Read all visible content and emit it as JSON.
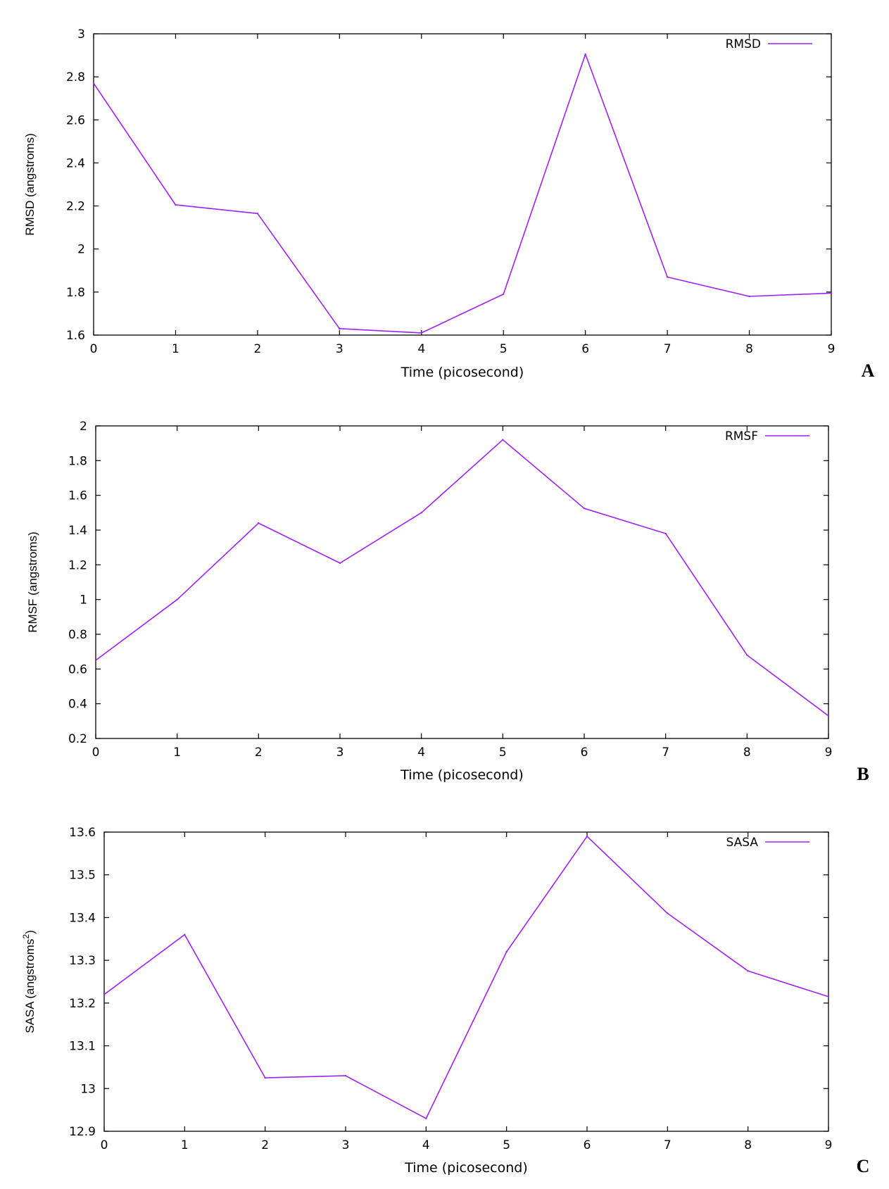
{
  "line_color": "#a020f0",
  "chart_data": [
    {
      "type": "line",
      "panel_label": "A",
      "xlabel": "Time (picosecond)",
      "ylabel": "RMSD (angstroms)",
      "ylabel_sup": "",
      "ylabel_tail": "",
      "legend": "RMSD",
      "legend_position": "top-right",
      "xlim": [
        0,
        9
      ],
      "ylim": [
        1.6,
        3.0
      ],
      "x_ticks": [
        "0",
        "1",
        "2",
        "3",
        "4",
        "5",
        "6",
        "7",
        "8",
        "9"
      ],
      "y_ticks": [
        "1.6",
        "1.8",
        "2",
        "2.2",
        "2.4",
        "2.6",
        "2.8",
        "3"
      ],
      "x": [
        0,
        1,
        2,
        3,
        4,
        5,
        6,
        7,
        8,
        9
      ],
      "y": [
        2.77,
        2.205,
        2.165,
        1.63,
        1.61,
        1.79,
        2.905,
        1.87,
        1.78,
        1.795
      ]
    },
    {
      "type": "line",
      "panel_label": "B",
      "xlabel": "Time (picosecond)",
      "ylabel": "RMSF (angstroms)",
      "ylabel_sup": "",
      "ylabel_tail": "",
      "legend": "RMSF",
      "legend_position": "top-right",
      "xlim": [
        0,
        9
      ],
      "ylim": [
        0.2,
        2.0
      ],
      "x_ticks": [
        "0",
        "1",
        "2",
        "3",
        "4",
        "5",
        "6",
        "7",
        "8",
        "9"
      ],
      "y_ticks": [
        "0.2",
        "0.4",
        "0.6",
        "0.8",
        "1",
        "1.2",
        "1.4",
        "1.6",
        "1.8",
        "2"
      ],
      "x": [
        0,
        1,
        2,
        3,
        4,
        5,
        6,
        7,
        8,
        9
      ],
      "y": [
        0.65,
        1.0,
        1.44,
        1.21,
        1.5,
        1.92,
        1.525,
        1.38,
        0.68,
        0.33
      ]
    },
    {
      "type": "line",
      "panel_label": "C",
      "xlabel": "Time (picosecond)",
      "ylabel": "SASA (angstroms",
      "ylabel_sup": "2",
      "ylabel_tail": ")",
      "legend": "SASA",
      "legend_position": "top-right",
      "xlim": [
        0,
        9
      ],
      "ylim": [
        12.9,
        13.6
      ],
      "x_ticks": [
        "0",
        "1",
        "2",
        "3",
        "4",
        "5",
        "6",
        "7",
        "8",
        "9"
      ],
      "y_ticks": [
        "12.9",
        "13",
        "13.1",
        "13.2",
        "13.3",
        "13.4",
        "13.5",
        "13.6"
      ],
      "x": [
        0,
        1,
        2,
        3,
        4,
        5,
        6,
        7,
        8,
        9
      ],
      "y": [
        13.22,
        13.36,
        13.025,
        13.03,
        12.93,
        13.32,
        13.59,
        13.41,
        13.275,
        13.215
      ]
    }
  ]
}
